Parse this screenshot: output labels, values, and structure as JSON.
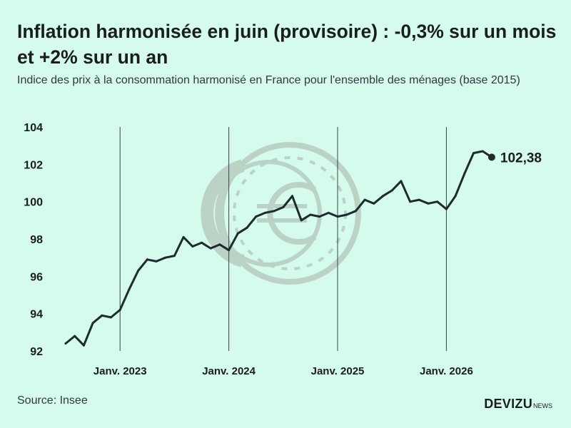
{
  "header": {
    "title": "Inflation harmonisée en juin (provisoire) : -0,3% sur un mois et +2% sur un an",
    "subtitle": "Indice des prix à la consommation harmonisé en France pour l'ensemble des ménages (base 2015)"
  },
  "footer": {
    "source": "Source: Insee",
    "brand": "DEVIZU",
    "brand_suffix": "NEWS"
  },
  "colors": {
    "background": "#d4fbeb",
    "line": "#1f2a2e",
    "watermark": "#b9cfc4"
  },
  "watermark_icon": "euro-coin-icon",
  "chart_data": {
    "type": "line",
    "title": "",
    "xlabel": "",
    "ylabel": "",
    "ylim": [
      92,
      104
    ],
    "yticks": [
      "92",
      "94",
      "96",
      "98",
      "100",
      "102",
      "104"
    ],
    "xtick_labels": [
      "Janv. 2023",
      "Janv. 2024",
      "Janv. 2025",
      "Janv. 2026"
    ],
    "grid": "vertical lines at January of each year",
    "end_label": "102,38",
    "series": [
      {
        "values": [
          92.4,
          92.8,
          92.3,
          93.5,
          93.9,
          93.8,
          94.2,
          95.3,
          96.3,
          96.9,
          96.8,
          97.0,
          97.1,
          98.1,
          97.6,
          97.8,
          97.5,
          97.7,
          97.4,
          98.3,
          98.6,
          99.2,
          99.4,
          99.5,
          99.7,
          100.3,
          99.0,
          99.3,
          99.2,
          99.4,
          99.2,
          99.3,
          99.5,
          100.1,
          99.9,
          100.3,
          100.6,
          101.1,
          100.0,
          100.1,
          99.9,
          100.0,
          99.6,
          100.3,
          101.5,
          102.6,
          102.7,
          102.38
        ]
      }
    ]
  }
}
